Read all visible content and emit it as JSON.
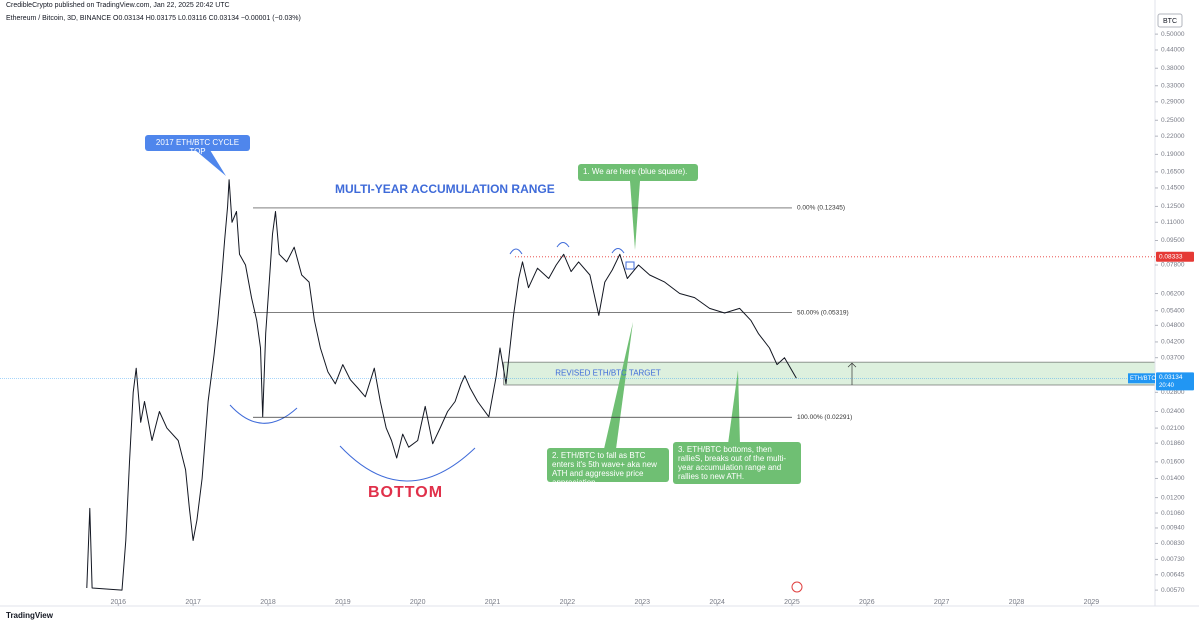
{
  "header": {
    "publisher": "CredibleCrypto published on TradingView.com, Jan 22, 2025 20:42 UTC",
    "symbol": "Ethereum / Bitcoin, 3D, BINANCE",
    "ohlc": "O0.03134 H0.03175 L0.03116 C0.03134 −0.00001 (−0.03%)"
  },
  "chart_data": {
    "type": "line",
    "log_scale": true,
    "axis_unit": "BTC",
    "xlim": [
      2014.42,
      2029.85
    ],
    "xticks": [
      2016,
      2017,
      2018,
      2019,
      2020,
      2021,
      2022,
      2023,
      2024,
      2025,
      2026,
      2027,
      2028,
      2029
    ],
    "ylim": [
      0.00557,
      0.658
    ],
    "yticks": [
      {
        "value": 0.5,
        "label": "0.50000"
      },
      {
        "value": 0.44,
        "label": "0.44000"
      },
      {
        "value": 0.38,
        "label": "0.38000"
      },
      {
        "value": 0.33,
        "label": "0.33000"
      },
      {
        "value": 0.29,
        "label": "0.29000"
      },
      {
        "value": 0.25,
        "label": "0.25000"
      },
      {
        "value": 0.22,
        "label": "0.22000"
      },
      {
        "value": 0.19,
        "label": "0.19000"
      },
      {
        "value": 0.165,
        "label": "0.16500"
      },
      {
        "value": 0.145,
        "label": "0.14500"
      },
      {
        "value": 0.125,
        "label": "0.12500"
      },
      {
        "value": 0.11,
        "label": "0.11000"
      },
      {
        "value": 0.095,
        "label": "0.09500"
      },
      {
        "value": 0.078,
        "label": "0.07800"
      },
      {
        "value": 0.062,
        "label": "0.06200"
      },
      {
        "value": 0.054,
        "label": "0.05400"
      },
      {
        "value": 0.048,
        "label": "0.04800"
      },
      {
        "value": 0.042,
        "label": "0.04200"
      },
      {
        "value": 0.037,
        "label": "0.03700"
      },
      {
        "value": 0.028,
        "label": "0.02800"
      },
      {
        "value": 0.024,
        "label": "0.02400"
      },
      {
        "value": 0.021,
        "label": "0.02100"
      },
      {
        "value": 0.0186,
        "label": "0.01860"
      },
      {
        "value": 0.016,
        "label": "0.01600"
      },
      {
        "value": 0.014,
        "label": "0.01400"
      },
      {
        "value": 0.012,
        "label": "0.01200"
      },
      {
        "value": 0.0106,
        "label": "0.01060"
      },
      {
        "value": 0.0094,
        "label": "0.00940"
      },
      {
        "value": 0.0083,
        "label": "0.00830"
      },
      {
        "value": 0.0073,
        "label": "0.00730"
      },
      {
        "value": 0.00645,
        "label": "0.00645"
      },
      {
        "value": 0.0057,
        "label": "0.00570"
      }
    ],
    "x": [
      2015.58,
      2015.62,
      2015.65,
      2016.05,
      2016.1,
      2016.15,
      2016.2,
      2016.24,
      2016.3,
      2016.35,
      2016.45,
      2016.55,
      2016.65,
      2016.8,
      2016.9,
      2016.95,
      2017.0,
      2017.05,
      2017.12,
      2017.2,
      2017.28,
      2017.33,
      2017.38,
      2017.42,
      2017.46,
      2017.48,
      2017.52,
      2017.58,
      2017.62,
      2017.7,
      2017.78,
      2017.85,
      2017.9,
      2017.93,
      2017.97,
      2018.02,
      2018.06,
      2018.1,
      2018.15,
      2018.25,
      2018.35,
      2018.45,
      2018.55,
      2018.62,
      2018.7,
      2018.8,
      2018.9,
      2019.0,
      2019.1,
      2019.2,
      2019.3,
      2019.42,
      2019.5,
      2019.58,
      2019.65,
      2019.72,
      2019.8,
      2019.88,
      2020.0,
      2020.1,
      2020.2,
      2020.3,
      2020.4,
      2020.5,
      2020.58,
      2020.63,
      2020.7,
      2020.8,
      2020.95,
      2021.05,
      2021.1,
      2021.18,
      2021.28,
      2021.35,
      2021.4,
      2021.48,
      2021.6,
      2021.75,
      2021.85,
      2021.95,
      2022.05,
      2022.15,
      2022.3,
      2022.42,
      2022.5,
      2022.6,
      2022.7,
      2022.8,
      2022.95,
      2023.1,
      2023.3,
      2023.5,
      2023.7,
      2023.9,
      2024.1,
      2024.3,
      2024.45,
      2024.55,
      2024.7,
      2024.8,
      2024.9,
      2025.06
    ],
    "series": [
      {
        "name": "ETH/BTC",
        "color": "#131722",
        "values": [
          0.0058,
          0.011,
          0.0058,
          0.0057,
          0.0085,
          0.016,
          0.028,
          0.034,
          0.022,
          0.026,
          0.019,
          0.024,
          0.021,
          0.019,
          0.015,
          0.011,
          0.0085,
          0.01,
          0.014,
          0.026,
          0.038,
          0.05,
          0.07,
          0.095,
          0.125,
          0.155,
          0.11,
          0.12,
          0.085,
          0.078,
          0.06,
          0.05,
          0.04,
          0.023,
          0.045,
          0.07,
          0.1,
          0.12,
          0.085,
          0.08,
          0.09,
          0.072,
          0.068,
          0.05,
          0.04,
          0.033,
          0.03,
          0.035,
          0.031,
          0.029,
          0.027,
          0.034,
          0.026,
          0.021,
          0.019,
          0.0165,
          0.02,
          0.018,
          0.019,
          0.025,
          0.0185,
          0.021,
          0.024,
          0.026,
          0.03,
          0.032,
          0.029,
          0.026,
          0.023,
          0.032,
          0.04,
          0.03,
          0.052,
          0.07,
          0.08,
          0.065,
          0.076,
          0.07,
          0.078,
          0.085,
          0.074,
          0.08,
          0.072,
          0.052,
          0.068,
          0.075,
          0.085,
          0.07,
          0.078,
          0.072,
          0.068,
          0.062,
          0.06,
          0.055,
          0.053,
          0.055,
          0.05,
          0.045,
          0.04,
          0.035,
          0.037,
          0.03134
        ]
      }
    ],
    "last_price": 0.03134,
    "last_time": "20:40",
    "levels": [
      {
        "label": "0.00% (0.12345)",
        "value": 0.12345
      },
      {
        "label": "50.00% (0.05319)",
        "value": 0.05319
      },
      {
        "label": "100.00% (0.02291)",
        "value": 0.02291
      }
    ],
    "ath_line": 0.08333,
    "target_zone": {
      "label": "REVISED ETH/BTC TARGET",
      "range": [
        0.0357,
        0.0297
      ]
    },
    "annotations": {
      "cycle_top": "2017 ETH/BTC CYCLE TOP",
      "range_title": "MULTI-YEAR ACCUMULATION RANGE",
      "bottom": "BOTTOM",
      "note1": "1. We are here (blue square).",
      "note2": "2. ETH/BTC to fall as BTC enters it's 5th wave+ aka new ATH and aggressive price appreciation",
      "note3": "3. ETH/BTC bottoms, then rallieS, breaks out of the multi-year accumulation range and rallies to new ATH."
    }
  },
  "footer": {
    "brand": "TradingView"
  }
}
